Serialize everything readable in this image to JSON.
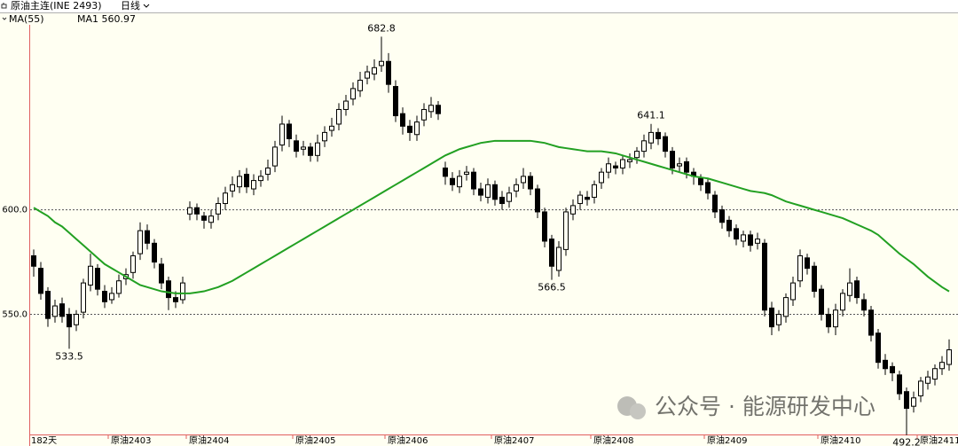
{
  "chart_data": {
    "type": "candlestick",
    "title": "原油主连(INE 2493)",
    "period": "日线",
    "indicator_label": "MA(55)",
    "ma_label": "MA1 560.97",
    "period_label": "182天",
    "watermark": "公众号 · 能源研发中心",
    "ylim": [
      492.5,
      688.5
    ],
    "yticks": [
      {
        "value": 550,
        "label": "550.0"
      },
      {
        "value": 600,
        "label": "600.0"
      }
    ],
    "grid": true,
    "up_color": "#000000",
    "down_color": "#000000",
    "ma_color": "#22a022",
    "xlabels": [
      {
        "value": 11,
        "label": "原油2403"
      },
      {
        "value": 22,
        "label": "原油2404"
      },
      {
        "value": 37,
        "label": "原油2405"
      },
      {
        "value": 50,
        "label": "原油2406"
      },
      {
        "value": 65,
        "label": "原油2407"
      },
      {
        "value": 79,
        "label": "原油2408"
      },
      {
        "value": 95,
        "label": "原油2409"
      },
      {
        "value": 111,
        "label": "原油2410"
      },
      {
        "value": 125,
        "label": "原油2411"
      }
    ],
    "annotations": [
      682.8,
      533.5,
      566.5,
      641.1,
      492.2
    ],
    "open": [
      578,
      572,
      561,
      549,
      555,
      550,
      545,
      551,
      564,
      572,
      561,
      557,
      560,
      567,
      570,
      579,
      590,
      584,
      574,
      566,
      558,
      557,
      598,
      601,
      597,
      594,
      598,
      603,
      609,
      611,
      617,
      610,
      614,
      617,
      621,
      631,
      641,
      633,
      629,
      630,
      626,
      633,
      638,
      641,
      648,
      653,
      657,
      663,
      665,
      669,
      671,
      659,
      646,
      640,
      636,
      643,
      647,
      650,
      620,
      615,
      611,
      617,
      618,
      610,
      606,
      612,
      606,
      604,
      609,
      613,
      616,
      610,
      599,
      586,
      571,
      581,
      598,
      603,
      606,
      606,
      613,
      618,
      621,
      620,
      623,
      625,
      628,
      632,
      637,
      635,
      628,
      621,
      623,
      618,
      615,
      613,
      607,
      600,
      595,
      591,
      585,
      588,
      584,
      584,
      553,
      545,
      549,
      557,
      566,
      577,
      573,
      562,
      550,
      544,
      552,
      559,
      566,
      557,
      552,
      541,
      528,
      525,
      521,
      513,
      506,
      511,
      517,
      519,
      524,
      526
    ],
    "high": [
      581,
      575,
      563,
      557,
      558,
      553,
      552,
      567,
      579,
      574,
      564,
      563,
      569,
      572,
      580,
      594,
      593,
      586,
      577,
      568,
      561,
      568,
      604,
      603,
      599,
      600,
      606,
      611,
      616,
      619,
      620,
      617,
      619,
      624,
      633,
      645,
      643,
      636,
      633,
      632,
      636,
      640,
      644,
      651,
      655,
      661,
      666,
      669,
      672,
      682.8,
      675,
      662,
      649,
      643,
      645,
      651,
      654,
      652,
      623,
      618,
      619,
      621,
      620,
      613,
      615,
      614,
      609,
      611,
      615,
      620,
      618,
      612,
      601,
      588,
      585,
      601,
      605,
      609,
      609,
      614,
      620,
      625,
      623,
      626,
      627,
      630,
      636,
      641.1,
      639,
      637,
      630,
      625,
      625,
      620,
      617,
      615,
      609,
      602,
      597,
      593,
      590,
      590,
      589,
      586,
      556,
      552,
      560,
      568,
      581,
      579,
      575,
      564,
      553,
      555,
      562,
      572,
      568,
      560,
      554,
      543,
      531,
      527,
      523,
      515,
      513,
      520,
      523,
      526,
      530,
      538
    ],
    "low": [
      568,
      557,
      544,
      546,
      546,
      533.5,
      542,
      548,
      561,
      559,
      553,
      555,
      558,
      564,
      567,
      576,
      581,
      572,
      562,
      552,
      553,
      555,
      595,
      595,
      591,
      591,
      595,
      600,
      606,
      608,
      608,
      607,
      611,
      614,
      618,
      628,
      630,
      625,
      626,
      623,
      623,
      630,
      635,
      638,
      645,
      650,
      654,
      660,
      662,
      666,
      656,
      642,
      636,
      633,
      633,
      640,
      644,
      643,
      612,
      609,
      608,
      614,
      607,
      604,
      603,
      602,
      600,
      601,
      606,
      610,
      607,
      596,
      582,
      566.5,
      568,
      578,
      595,
      600,
      602,
      603,
      610,
      615,
      617,
      617,
      620,
      622,
      625,
      629,
      631,
      625,
      617,
      618,
      615,
      612,
      609,
      605,
      596,
      591,
      587,
      583,
      582,
      580,
      581,
      549,
      540,
      542,
      546,
      554,
      563,
      569,
      558,
      547,
      541,
      540,
      549,
      556,
      555,
      549,
      537,
      524,
      521,
      518,
      509,
      492.2,
      503,
      508,
      514,
      516,
      521,
      523
    ],
    "close": [
      573,
      560,
      548,
      554,
      549,
      544,
      550,
      565,
      573,
      562,
      556,
      560,
      566,
      569,
      578,
      590,
      584,
      575,
      565,
      558,
      556,
      565,
      601,
      598,
      595,
      597,
      603,
      608,
      612,
      616,
      611,
      614,
      616,
      620,
      630,
      641,
      634,
      628,
      630,
      626,
      632,
      637,
      640,
      648,
      652,
      658,
      662,
      666,
      668,
      671,
      660,
      645,
      640,
      637,
      642,
      648,
      650,
      646,
      616,
      612,
      616,
      618,
      610,
      607,
      612,
      605,
      603,
      608,
      612,
      616,
      610,
      599,
      585,
      573,
      582,
      599,
      602,
      607,
      605,
      612,
      618,
      622,
      620,
      624,
      624,
      628,
      633,
      637,
      634,
      628,
      620,
      622,
      618,
      616,
      612,
      608,
      599,
      594,
      590,
      586,
      588,
      583,
      586,
      552,
      544,
      550,
      558,
      565,
      578,
      572,
      561,
      550,
      544,
      552,
      560,
      565,
      558,
      552,
      540,
      527,
      524,
      522,
      512,
      505,
      510,
      518,
      520,
      524,
      527,
      533
    ],
    "ma": [
      601,
      599,
      597,
      594,
      592,
      589,
      586,
      583,
      580,
      577,
      574,
      572,
      570,
      568,
      566,
      564,
      563,
      562,
      561,
      560.5,
      560,
      560,
      560,
      560.5,
      561,
      562,
      563,
      564.5,
      566,
      568,
      570,
      572,
      574,
      576,
      578,
      580,
      582,
      584,
      586,
      588,
      590,
      592,
      594,
      596,
      598,
      600,
      602,
      604,
      606,
      608,
      610,
      612,
      614,
      616,
      618,
      620,
      622,
      624,
      626,
      627.5,
      629,
      630,
      631,
      632,
      632.5,
      633,
      633,
      633,
      633,
      633,
      633,
      632.5,
      632,
      631,
      630,
      629.5,
      629,
      628.5,
      628,
      628,
      628,
      627.5,
      627,
      626,
      625,
      624,
      623,
      622,
      621,
      620,
      619,
      618,
      617,
      616,
      615.5,
      615,
      614,
      613,
      612,
      611,
      610,
      609,
      608.5,
      608,
      607,
      605.5,
      604,
      603,
      602,
      601,
      600,
      599,
      598,
      597,
      596,
      594.5,
      593,
      591.5,
      590,
      588,
      585,
      582,
      579,
      576.5,
      574,
      571,
      568,
      565.5,
      563,
      560.97
    ]
  }
}
